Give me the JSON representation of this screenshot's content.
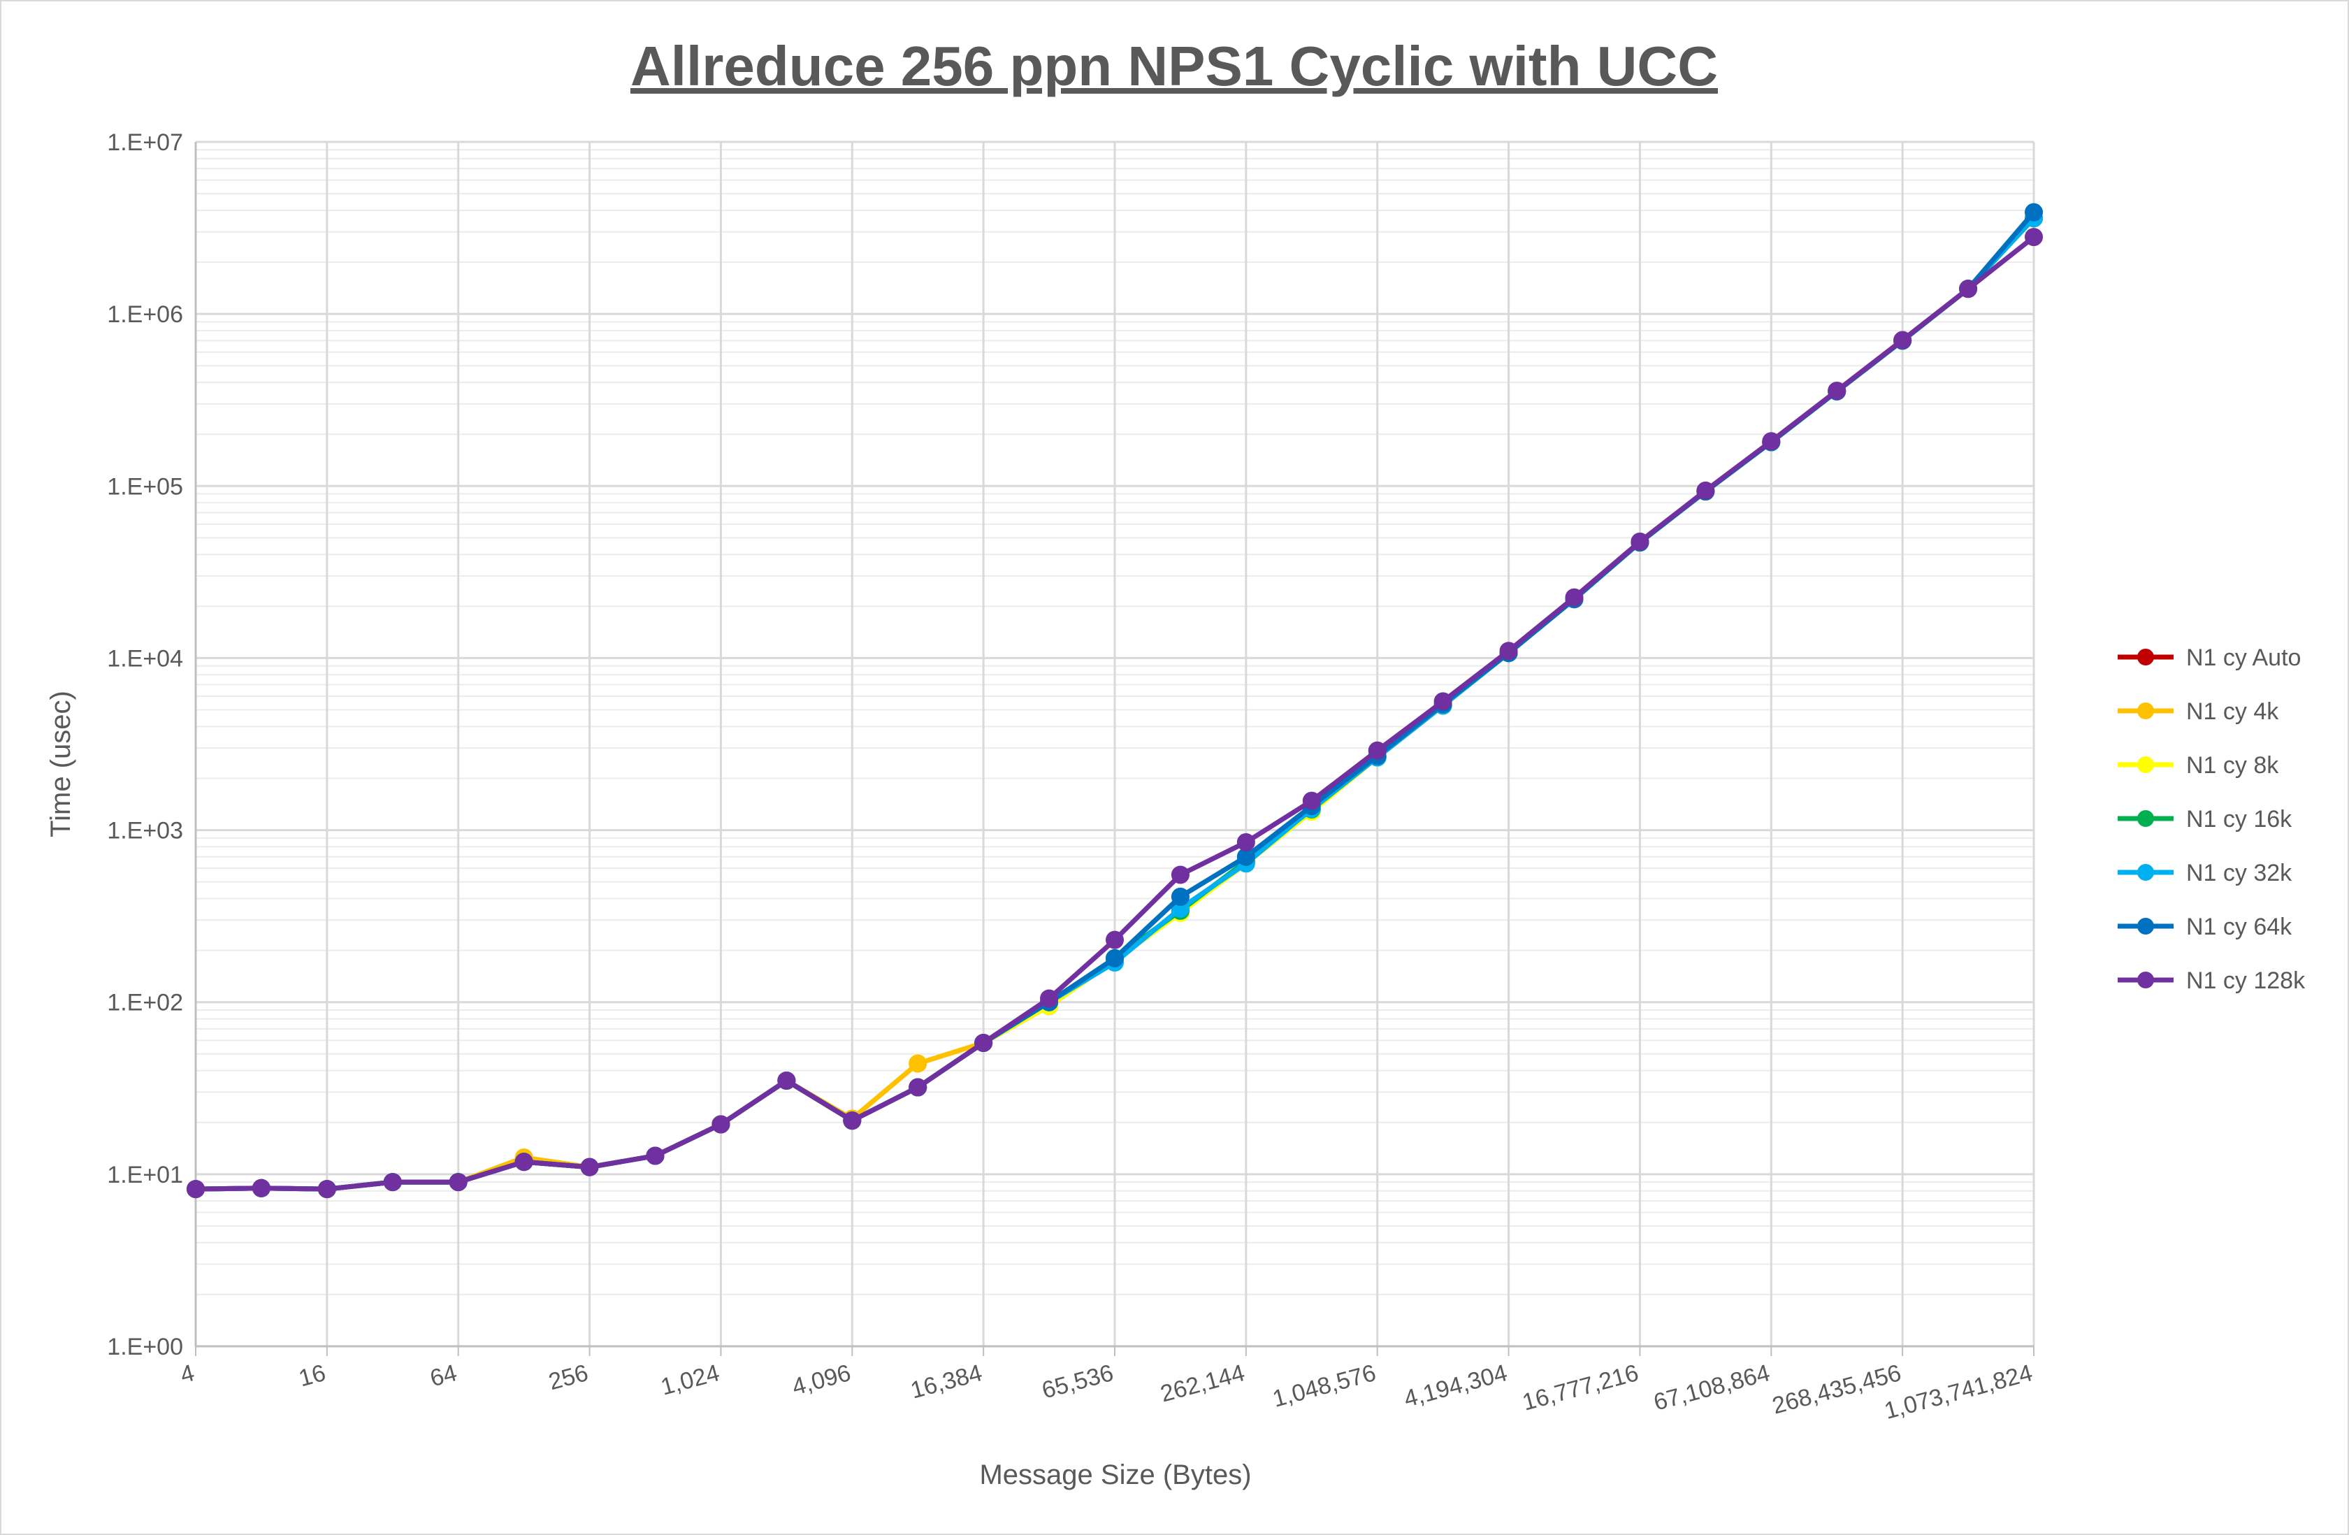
{
  "chart_data": {
    "type": "line",
    "title": "Allreduce 256 ppn NPS1 Cyclic with UCC",
    "xlabel": "Message Size (Bytes)",
    "ylabel": "Time (usec)",
    "yscale": "log",
    "ylim": [
      1,
      10000000
    ],
    "grid": true,
    "legend_position": "right",
    "x": [
      4,
      8,
      16,
      32,
      64,
      128,
      256,
      512,
      1024,
      2048,
      4096,
      8192,
      16384,
      32768,
      65536,
      131072,
      262144,
      524288,
      1048576,
      2097152,
      4194304,
      8388608,
      16777216,
      33554432,
      67108864,
      134217728,
      268435456,
      536870912,
      1073741824
    ],
    "x_tick_labels": [
      "4",
      "16",
      "64",
      "256",
      "1,024",
      "4,096",
      "16,384",
      "65,536",
      "262,144",
      "1,048,576",
      "4,194,304",
      "16,777,216",
      "67,108,864",
      "268,435,456",
      "1,073,741,824"
    ],
    "y_tick_labels": [
      "1.E+00",
      "1.E+01",
      "1.E+02",
      "1.E+03",
      "1.E+04",
      "1.E+05",
      "1.E+06",
      "1.E+07"
    ],
    "series": [
      {
        "name": "N1 cy Auto",
        "color": "#c00000",
        "values": [
          8.2,
          8.3,
          8.2,
          9.0,
          9.0,
          11.8,
          11.0,
          12.8,
          19.5,
          35.0,
          20.5,
          32.0,
          58.0,
          95.0,
          175.0,
          340.0,
          650.0,
          1300.0,
          2650.0,
          5300.0,
          10700.0,
          22000.0,
          47000.0,
          93000.0,
          180000.0,
          355000.0,
          700000.0,
          1400000.0,
          3600000.0
        ]
      },
      {
        "name": "N1 cy 4k",
        "color": "#ffc000",
        "values": [
          8.2,
          8.3,
          8.2,
          9.0,
          9.0,
          12.5,
          11.0,
          12.8,
          19.5,
          35.0,
          21.0,
          44.0,
          58.0,
          95.0,
          175.0,
          340.0,
          650.0,
          1300.0,
          2650.0,
          5300.0,
          10700.0,
          22000.0,
          47000.0,
          93000.0,
          180000.0,
          355000.0,
          700000.0,
          1400000.0,
          3600000.0
        ]
      },
      {
        "name": "N1 cy 8k",
        "color": "#ffff00",
        "values": [
          8.2,
          8.3,
          8.2,
          9.0,
          9.0,
          11.8,
          11.0,
          12.8,
          19.5,
          35.0,
          20.5,
          32.0,
          58.0,
          95.0,
          175.0,
          330.0,
          640.0,
          1280.0,
          2650.0,
          5300.0,
          10700.0,
          22000.0,
          47000.0,
          93000.0,
          180000.0,
          355000.0,
          700000.0,
          1400000.0,
          3600000.0
        ]
      },
      {
        "name": "N1 cy 16k",
        "color": "#00b050",
        "values": [
          8.2,
          8.3,
          8.2,
          9.0,
          9.0,
          11.8,
          11.0,
          12.8,
          19.5,
          35.0,
          20.5,
          32.0,
          58.0,
          100.0,
          180.0,
          340.0,
          660.0,
          1320.0,
          2650.0,
          5300.0,
          10700.0,
          22000.0,
          47000.0,
          93000.0,
          180000.0,
          355000.0,
          700000.0,
          1400000.0,
          3600000.0
        ]
      },
      {
        "name": "N1 cy 32k",
        "color": "#00b0f0",
        "values": [
          8.2,
          8.3,
          8.2,
          9.0,
          9.0,
          11.8,
          11.0,
          12.8,
          19.5,
          35.0,
          20.5,
          32.0,
          58.0,
          100.0,
          170.0,
          350.0,
          640.0,
          1330.0,
          2650.0,
          5300.0,
          10700.0,
          22000.0,
          47000.0,
          93000.0,
          180000.0,
          355000.0,
          700000.0,
          1400000.0,
          3600000.0
        ]
      },
      {
        "name": "N1 cy 64k",
        "color": "#0070c0",
        "values": [
          8.2,
          8.3,
          8.2,
          9.0,
          9.0,
          11.8,
          11.0,
          12.8,
          19.5,
          35.0,
          20.5,
          32.0,
          58.0,
          100.0,
          180.0,
          410.0,
          700.0,
          1380.0,
          2700.0,
          5400.0,
          10700.0,
          22000.0,
          47000.0,
          93000.0,
          180000.0,
          355000.0,
          700000.0,
          1400000.0,
          3900000.0
        ]
      },
      {
        "name": "N1 cy 128k",
        "color": "#7030a0",
        "values": [
          8.2,
          8.3,
          8.2,
          9.0,
          9.0,
          11.8,
          11.0,
          12.8,
          19.5,
          35.0,
          20.5,
          32.0,
          58.0,
          105.0,
          230.0,
          550.0,
          850.0,
          1480.0,
          2900.0,
          5600.0,
          11000.0,
          22500.0,
          47500.0,
          94000.0,
          182000.0,
          358000.0,
          705000.0,
          1400000.0,
          2800000.0
        ]
      }
    ]
  }
}
